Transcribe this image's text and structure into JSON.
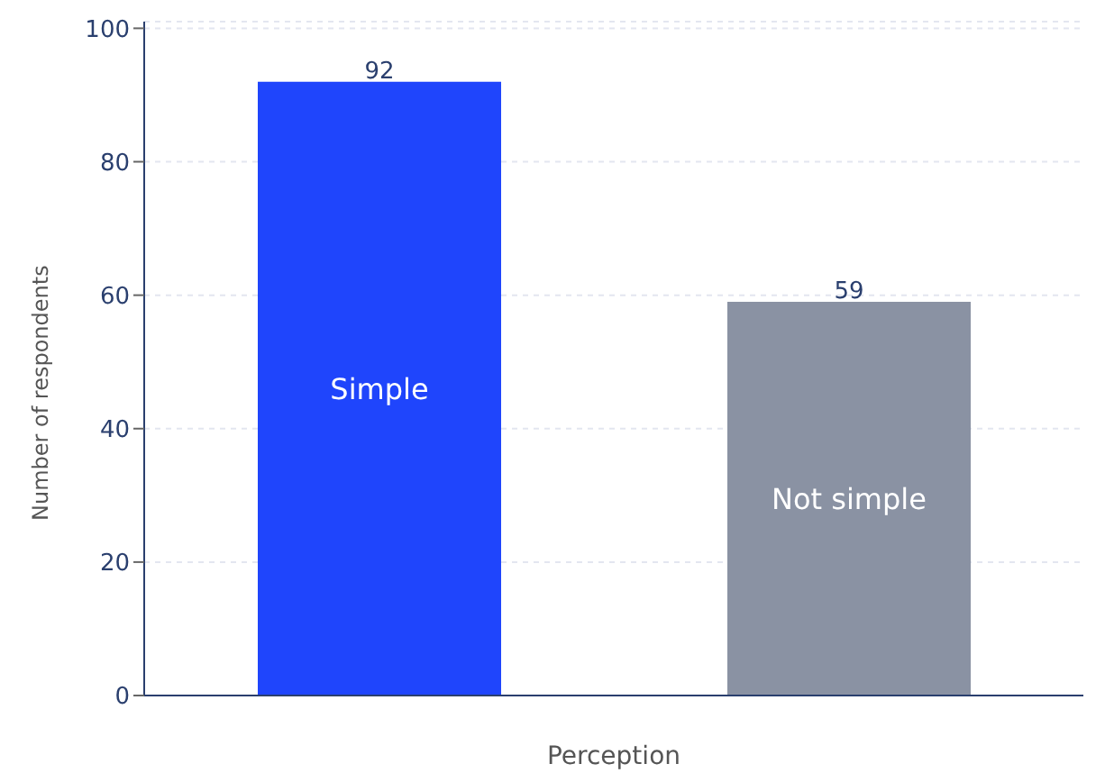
{
  "chart_data": {
    "type": "bar",
    "xlabel": "Perception",
    "ylabel": "Number of respondents",
    "categories": [
      "Simple",
      "Not simple"
    ],
    "values": [
      92,
      59
    ],
    "colors": [
      "#1f45fc",
      "#8a92a3"
    ],
    "ylim": [
      0,
      101
    ],
    "yticks": [
      0,
      20,
      40,
      60,
      80,
      100
    ],
    "grid": "y",
    "data_labels": true
  }
}
